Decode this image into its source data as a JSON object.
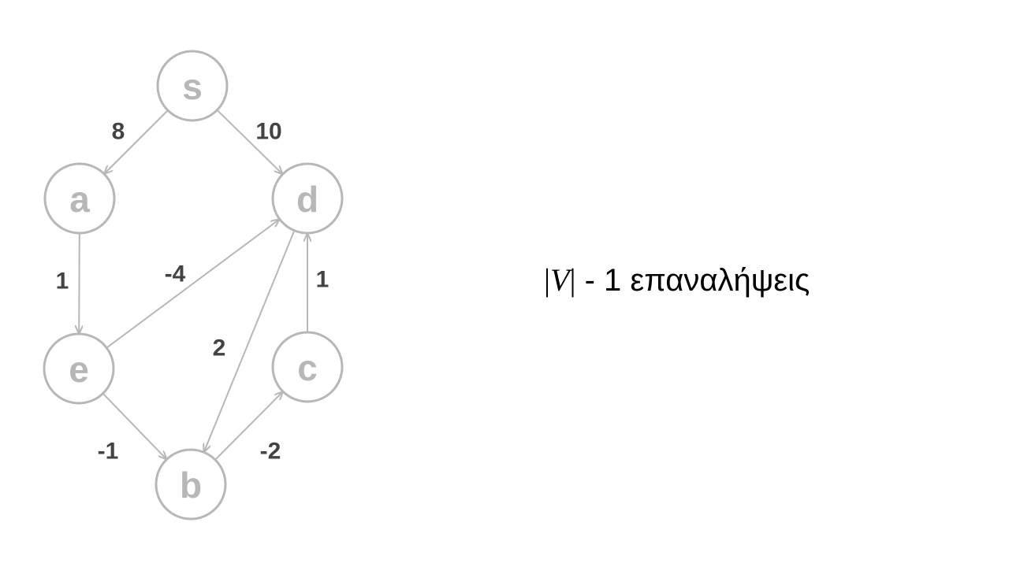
{
  "graph": {
    "nodes": [
      {
        "id": "s",
        "label": "s"
      },
      {
        "id": "a",
        "label": "a"
      },
      {
        "id": "d",
        "label": "d"
      },
      {
        "id": "e",
        "label": "e"
      },
      {
        "id": "c",
        "label": "c"
      },
      {
        "id": "b",
        "label": "b"
      }
    ],
    "edges": [
      {
        "from": "s",
        "to": "a",
        "weight": "8"
      },
      {
        "from": "s",
        "to": "d",
        "weight": "10"
      },
      {
        "from": "a",
        "to": "e",
        "weight": "1"
      },
      {
        "from": "e",
        "to": "d",
        "weight": "-4"
      },
      {
        "from": "d",
        "to": "b",
        "weight": "2"
      },
      {
        "from": "c",
        "to": "d",
        "weight": "1"
      },
      {
        "from": "e",
        "to": "b",
        "weight": "-1"
      },
      {
        "from": "b",
        "to": "c",
        "weight": "-2"
      }
    ],
    "colors": {
      "node": "#b7b7b7",
      "edge": "#b7b7b7",
      "weight": "#434343"
    }
  },
  "caption": {
    "math_open": "|",
    "math_var": "V",
    "math_close": "|",
    "text": " - 1 επαναλήψεις"
  }
}
